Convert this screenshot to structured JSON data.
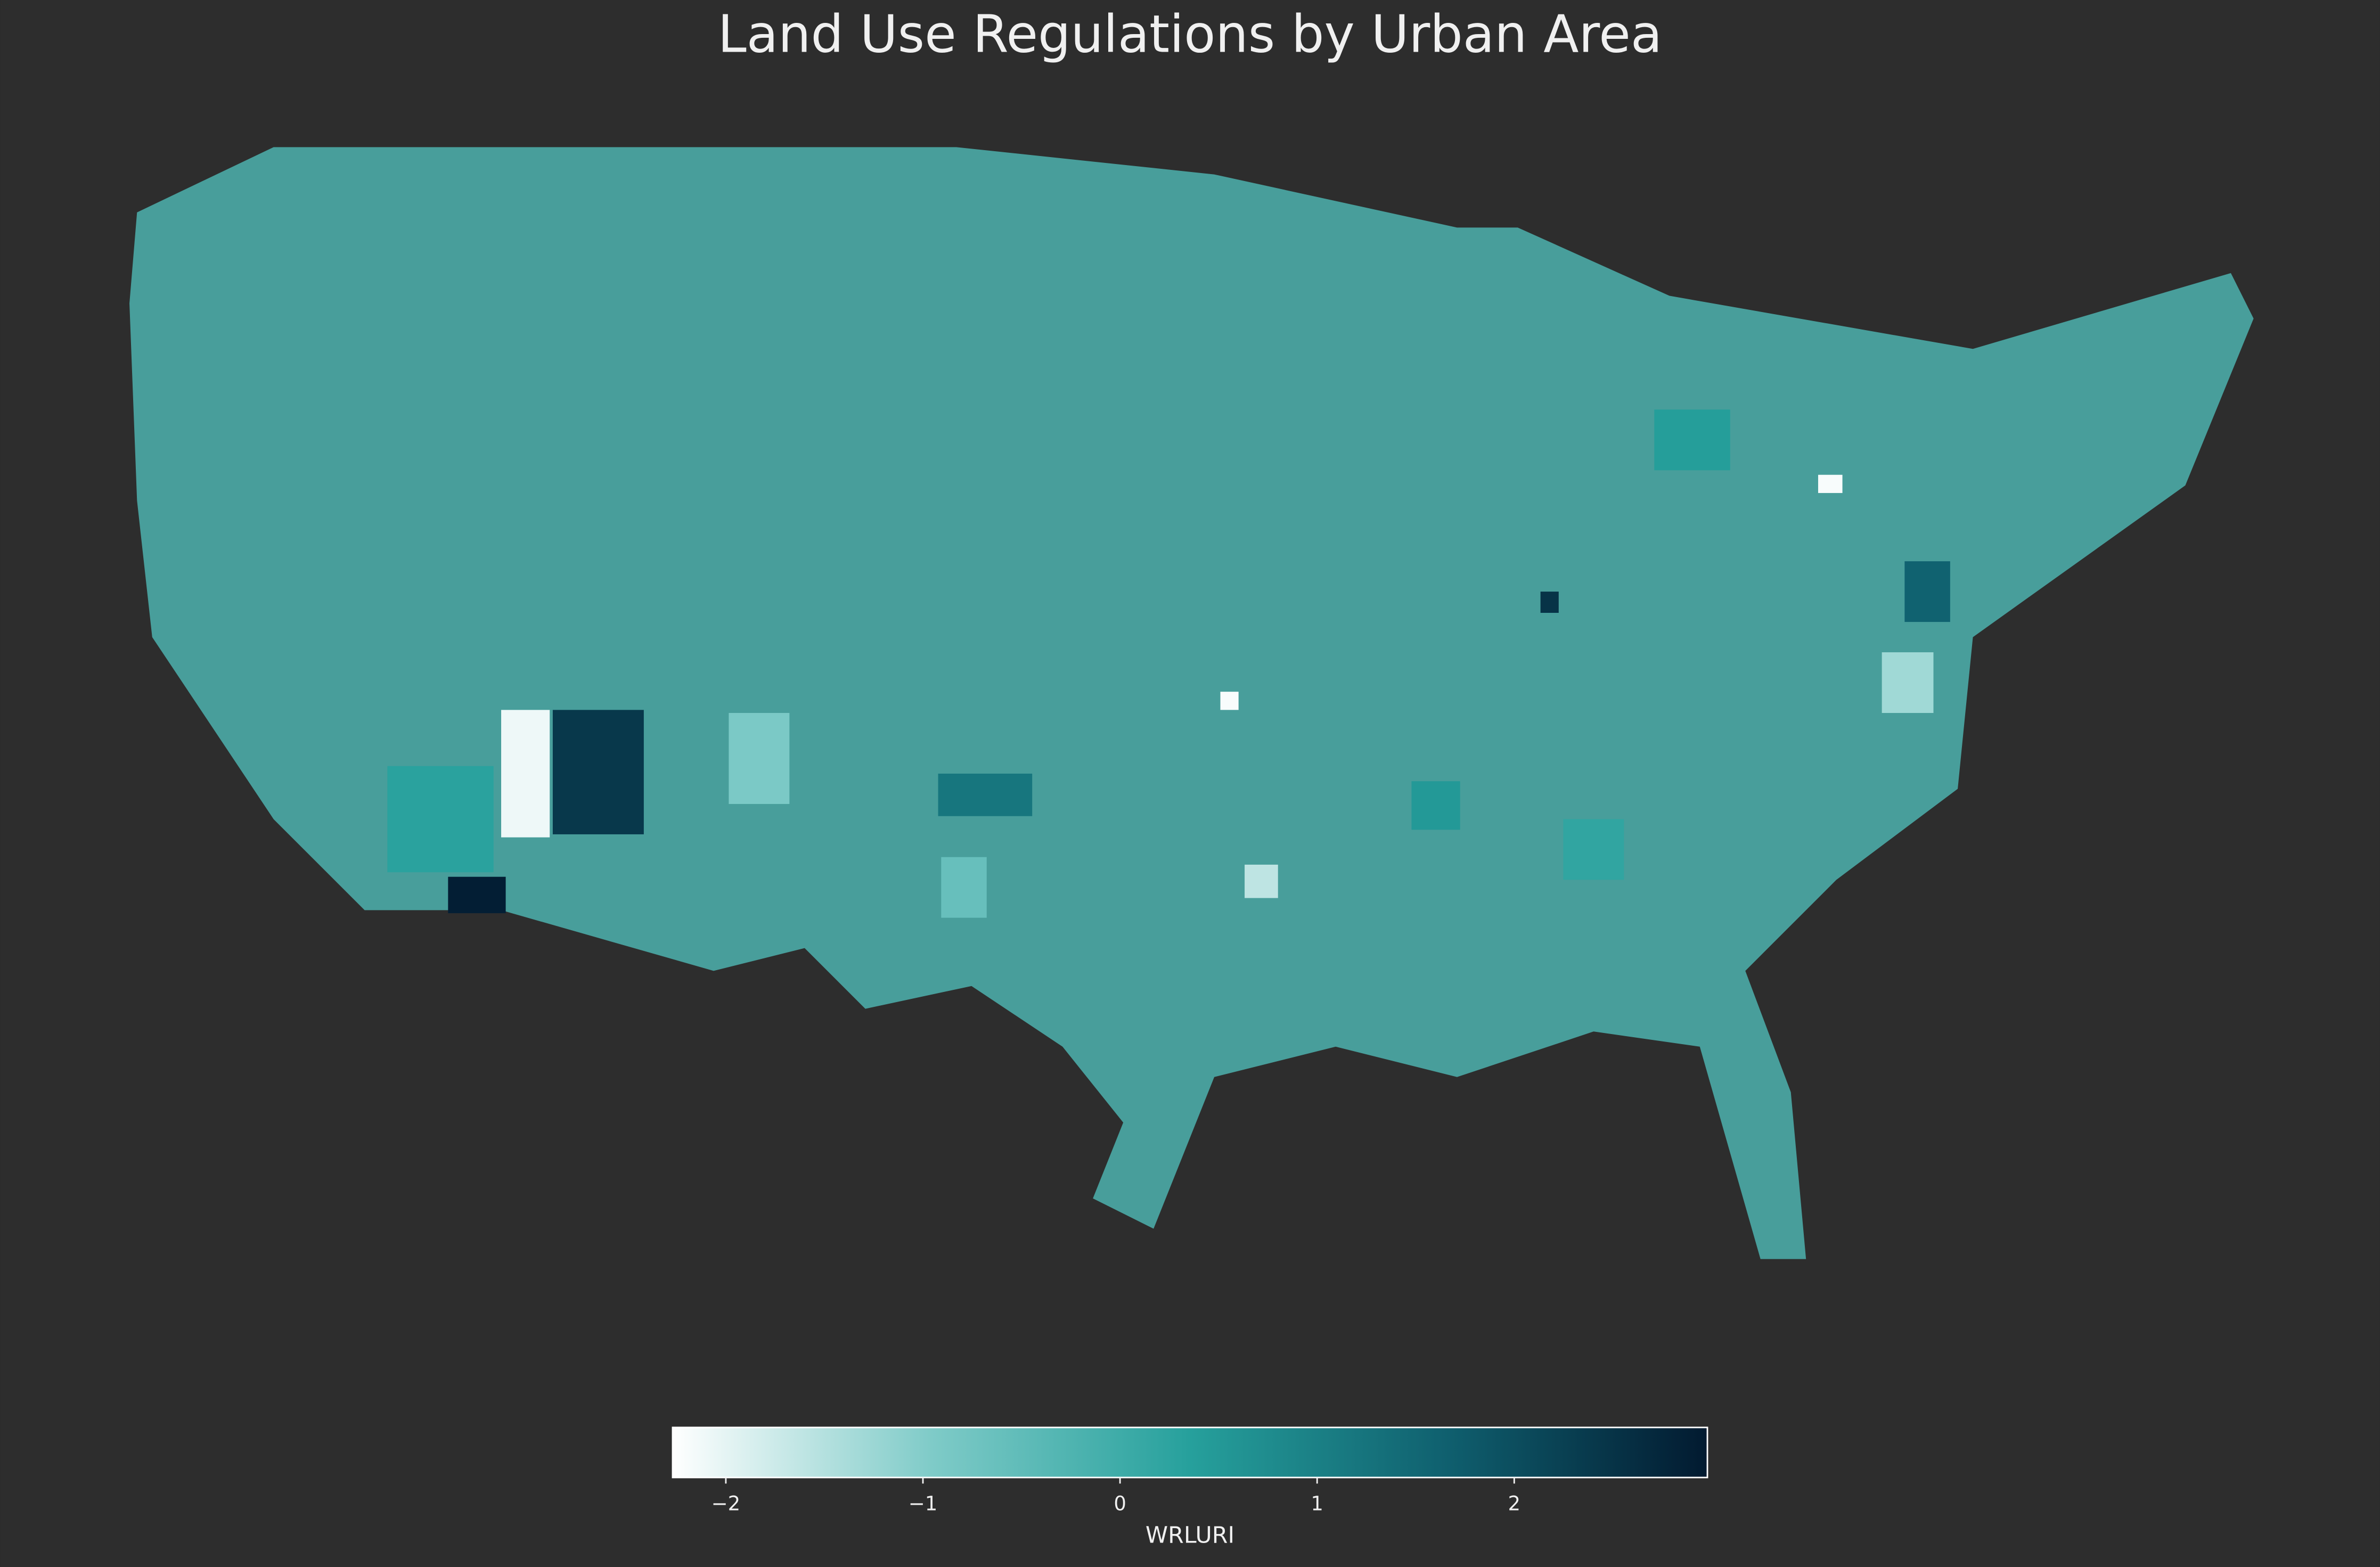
{
  "chart_data": {
    "type": "choropleth",
    "title": "Land Use Regulations by Urban Area",
    "colorbar_label": "WRLURI",
    "colormap": [
      "#ffffff",
      "#7fcbc8",
      "#26a09c",
      "#0f5f6e",
      "#021a30"
    ],
    "clim": [
      -2.27,
      2.98
    ],
    "cticks": [
      {
        "value": -2,
        "label": "−2"
      },
      {
        "value": -1,
        "label": "−1"
      },
      0,
      1,
      2
    ],
    "values": [
      2.9,
      -2.1,
      2.4,
      -2.2,
      -2.2,
      2.5,
      1.2,
      0.3,
      -0.9,
      0.5,
      -1.3,
      0.2,
      1.6,
      -0.6,
      0.4,
      -1.6
    ]
  }
}
